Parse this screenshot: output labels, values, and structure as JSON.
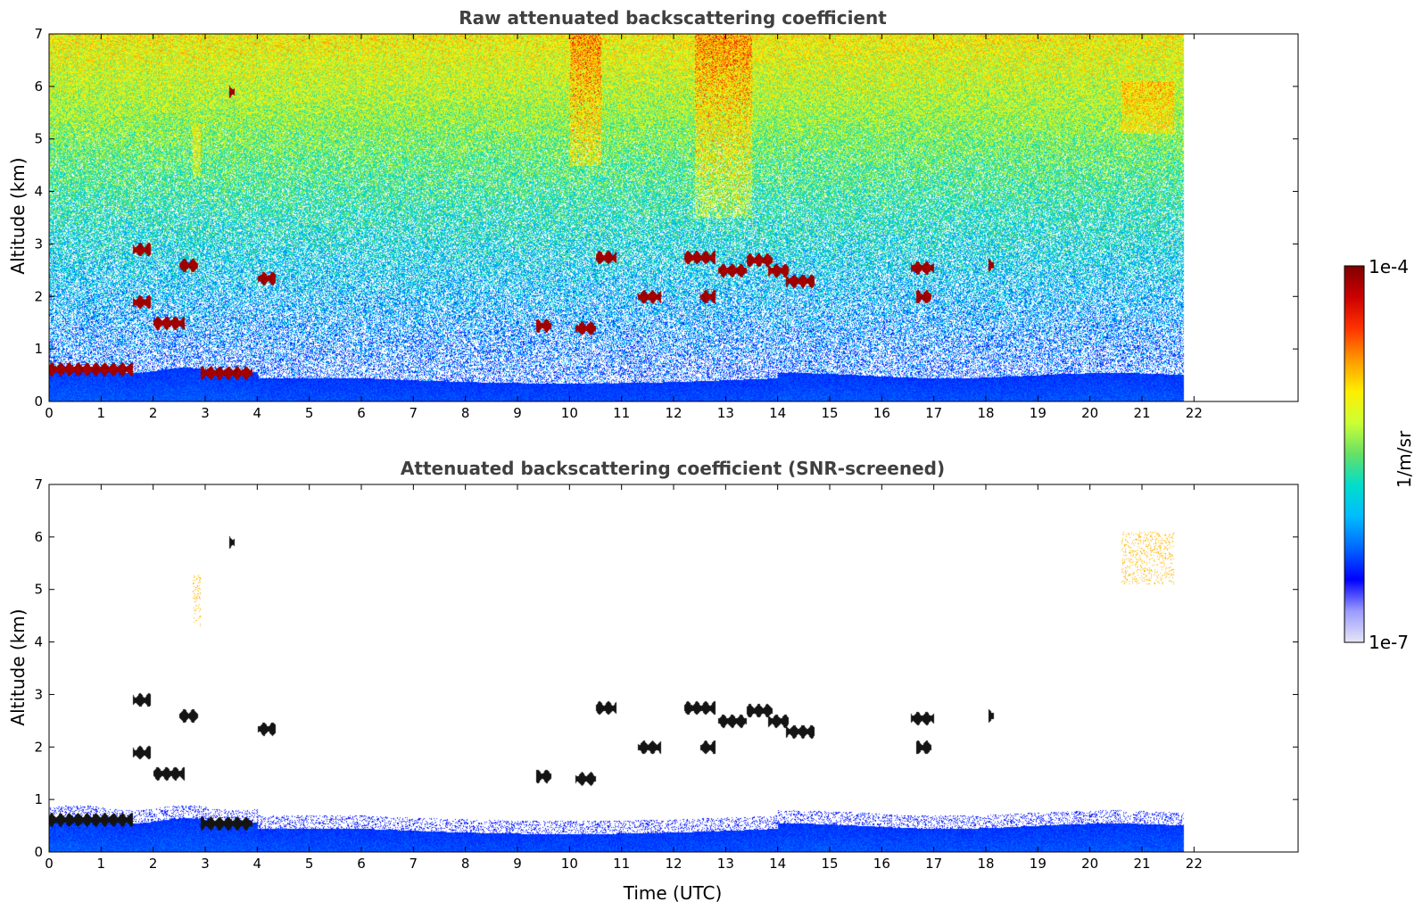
{
  "chart_data": [
    {
      "type": "heatmap",
      "title": "Raw attenuated backscattering coefficient",
      "xlabel": "",
      "ylabel": "Altitude (km)",
      "xlim": [
        0,
        24
      ],
      "ylim": [
        0,
        7
      ],
      "xticks": [
        "0",
        "1",
        "2",
        "3",
        "4",
        "5",
        "6",
        "7",
        "8",
        "9",
        "10",
        "11",
        "12",
        "13",
        "14",
        "15",
        "16",
        "17",
        "18",
        "19",
        "20",
        "21",
        "22"
      ],
      "yticks": [
        "0",
        "1",
        "2",
        "3",
        "4",
        "5",
        "6",
        "7"
      ],
      "data_end_time": 21.8,
      "cloud_layers": [
        {
          "t0": 0.0,
          "t1": 1.6,
          "z": 0.62
        },
        {
          "t0": 1.6,
          "t1": 1.95,
          "z": 1.9
        },
        {
          "t0": 1.6,
          "t1": 1.95,
          "z": 2.9
        },
        {
          "t0": 2.0,
          "t1": 2.6,
          "z": 1.5
        },
        {
          "t0": 2.5,
          "t1": 2.85,
          "z": 2.6
        },
        {
          "t0": 2.9,
          "t1": 3.9,
          "z": 0.55
        },
        {
          "t0": 3.45,
          "t1": 3.55,
          "z": 5.9
        },
        {
          "t0": 4.0,
          "t1": 4.35,
          "z": 2.35
        },
        {
          "t0": 9.35,
          "t1": 9.65,
          "z": 1.45
        },
        {
          "t0": 10.1,
          "t1": 10.5,
          "z": 1.4
        },
        {
          "t0": 10.5,
          "t1": 10.9,
          "z": 2.75
        },
        {
          "t0": 11.3,
          "t1": 11.75,
          "z": 2.0
        },
        {
          "t0": 12.2,
          "t1": 12.8,
          "z": 2.75
        },
        {
          "t0": 12.5,
          "t1": 12.8,
          "z": 2.0
        },
        {
          "t0": 12.85,
          "t1": 13.4,
          "z": 2.5
        },
        {
          "t0": 13.4,
          "t1": 13.9,
          "z": 2.7
        },
        {
          "t0": 13.8,
          "t1": 14.2,
          "z": 2.5
        },
        {
          "t0": 14.15,
          "t1": 14.7,
          "z": 2.3
        },
        {
          "t0": 16.55,
          "t1": 17.0,
          "z": 2.55
        },
        {
          "t0": 16.65,
          "t1": 16.95,
          "z": 2.0
        },
        {
          "t0": 18.05,
          "t1": 18.15,
          "z": 2.6
        }
      ],
      "aerosol_features": [
        {
          "t0": 2.75,
          "t1": 2.9,
          "z": 4.8,
          "level": "yellow"
        },
        {
          "t0": 20.6,
          "t1": 21.6,
          "z": 5.6,
          "level": "yellow"
        }
      ]
    },
    {
      "type": "heatmap",
      "title": "Attenuated backscattering coefficient (SNR-screened)",
      "xlabel": "Time (UTC)",
      "ylabel": "Altitude (km)",
      "xlim": [
        0,
        24
      ],
      "ylim": [
        0,
        7
      ],
      "xticks": [
        "0",
        "1",
        "2",
        "3",
        "4",
        "5",
        "6",
        "7",
        "8",
        "9",
        "10",
        "11",
        "12",
        "13",
        "14",
        "15",
        "16",
        "17",
        "18",
        "19",
        "20",
        "21",
        "22"
      ],
      "yticks": [
        "0",
        "1",
        "2",
        "3",
        "4",
        "5",
        "6",
        "7"
      ],
      "data_end_time": 21.8
    }
  ],
  "colorbar": {
    "label": "1/m/sr",
    "max_label": "1e-4",
    "min_label": "1e-7",
    "scale": "log",
    "range": [
      1e-07,
      0.0001
    ],
    "colormap_stops": [
      "#e6e6f5",
      "#9a9aff",
      "#0000ff",
      "#0066ff",
      "#00bbff",
      "#00ddcc",
      "#66e066",
      "#ccff33",
      "#ffee00",
      "#ff9900",
      "#ff3300",
      "#cc0000",
      "#800000"
    ]
  }
}
